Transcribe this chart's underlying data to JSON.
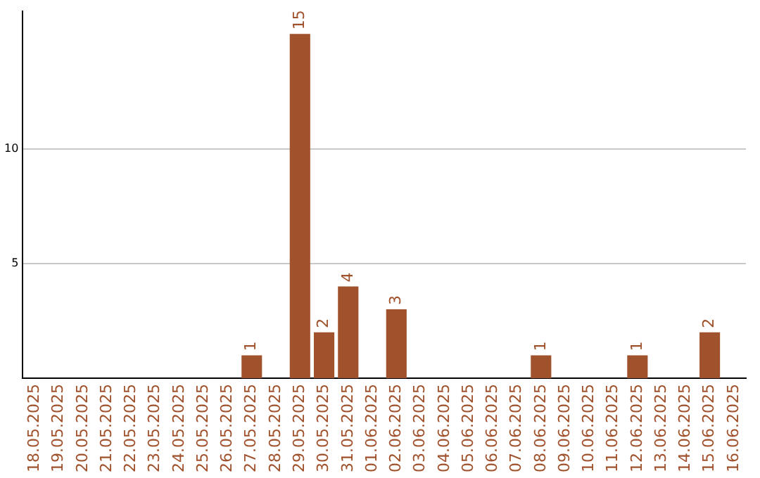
{
  "chart_data": {
    "type": "bar",
    "categories": [
      "18.05.2025",
      "19.05.2025",
      "20.05.2025",
      "21.05.2025",
      "22.05.2025",
      "23.05.2025",
      "24.05.2025",
      "25.05.2025",
      "26.05.2025",
      "27.05.2025",
      "28.05.2025",
      "29.05.2025",
      "30.05.2025",
      "31.05.2025",
      "01.06.2025",
      "02.06.2025",
      "03.06.2025",
      "04.06.2025",
      "05.06.2025",
      "06.06.2025",
      "07.06.2025",
      "08.06.2025",
      "09.06.2025",
      "10.06.2025",
      "11.06.2025",
      "12.06.2025",
      "13.06.2025",
      "14.06.2025",
      "15.06.2025",
      "16.06.2025"
    ],
    "values": [
      0,
      0,
      0,
      0,
      0,
      0,
      0,
      0,
      0,
      1,
      0,
      15,
      2,
      4,
      0,
      3,
      0,
      0,
      0,
      0,
      0,
      1,
      0,
      0,
      0,
      1,
      0,
      0,
      2,
      0
    ],
    "value_labels": [
      null,
      null,
      null,
      null,
      null,
      null,
      null,
      null,
      null,
      "1",
      null,
      "15",
      "2",
      "4",
      null,
      "3",
      null,
      null,
      null,
      null,
      null,
      "1",
      null,
      null,
      null,
      "1",
      null,
      null,
      "2",
      null
    ],
    "color": "#a0522d",
    "ylim": [
      0,
      16
    ],
    "yticks": [
      5,
      10
    ],
    "grid": "y"
  }
}
